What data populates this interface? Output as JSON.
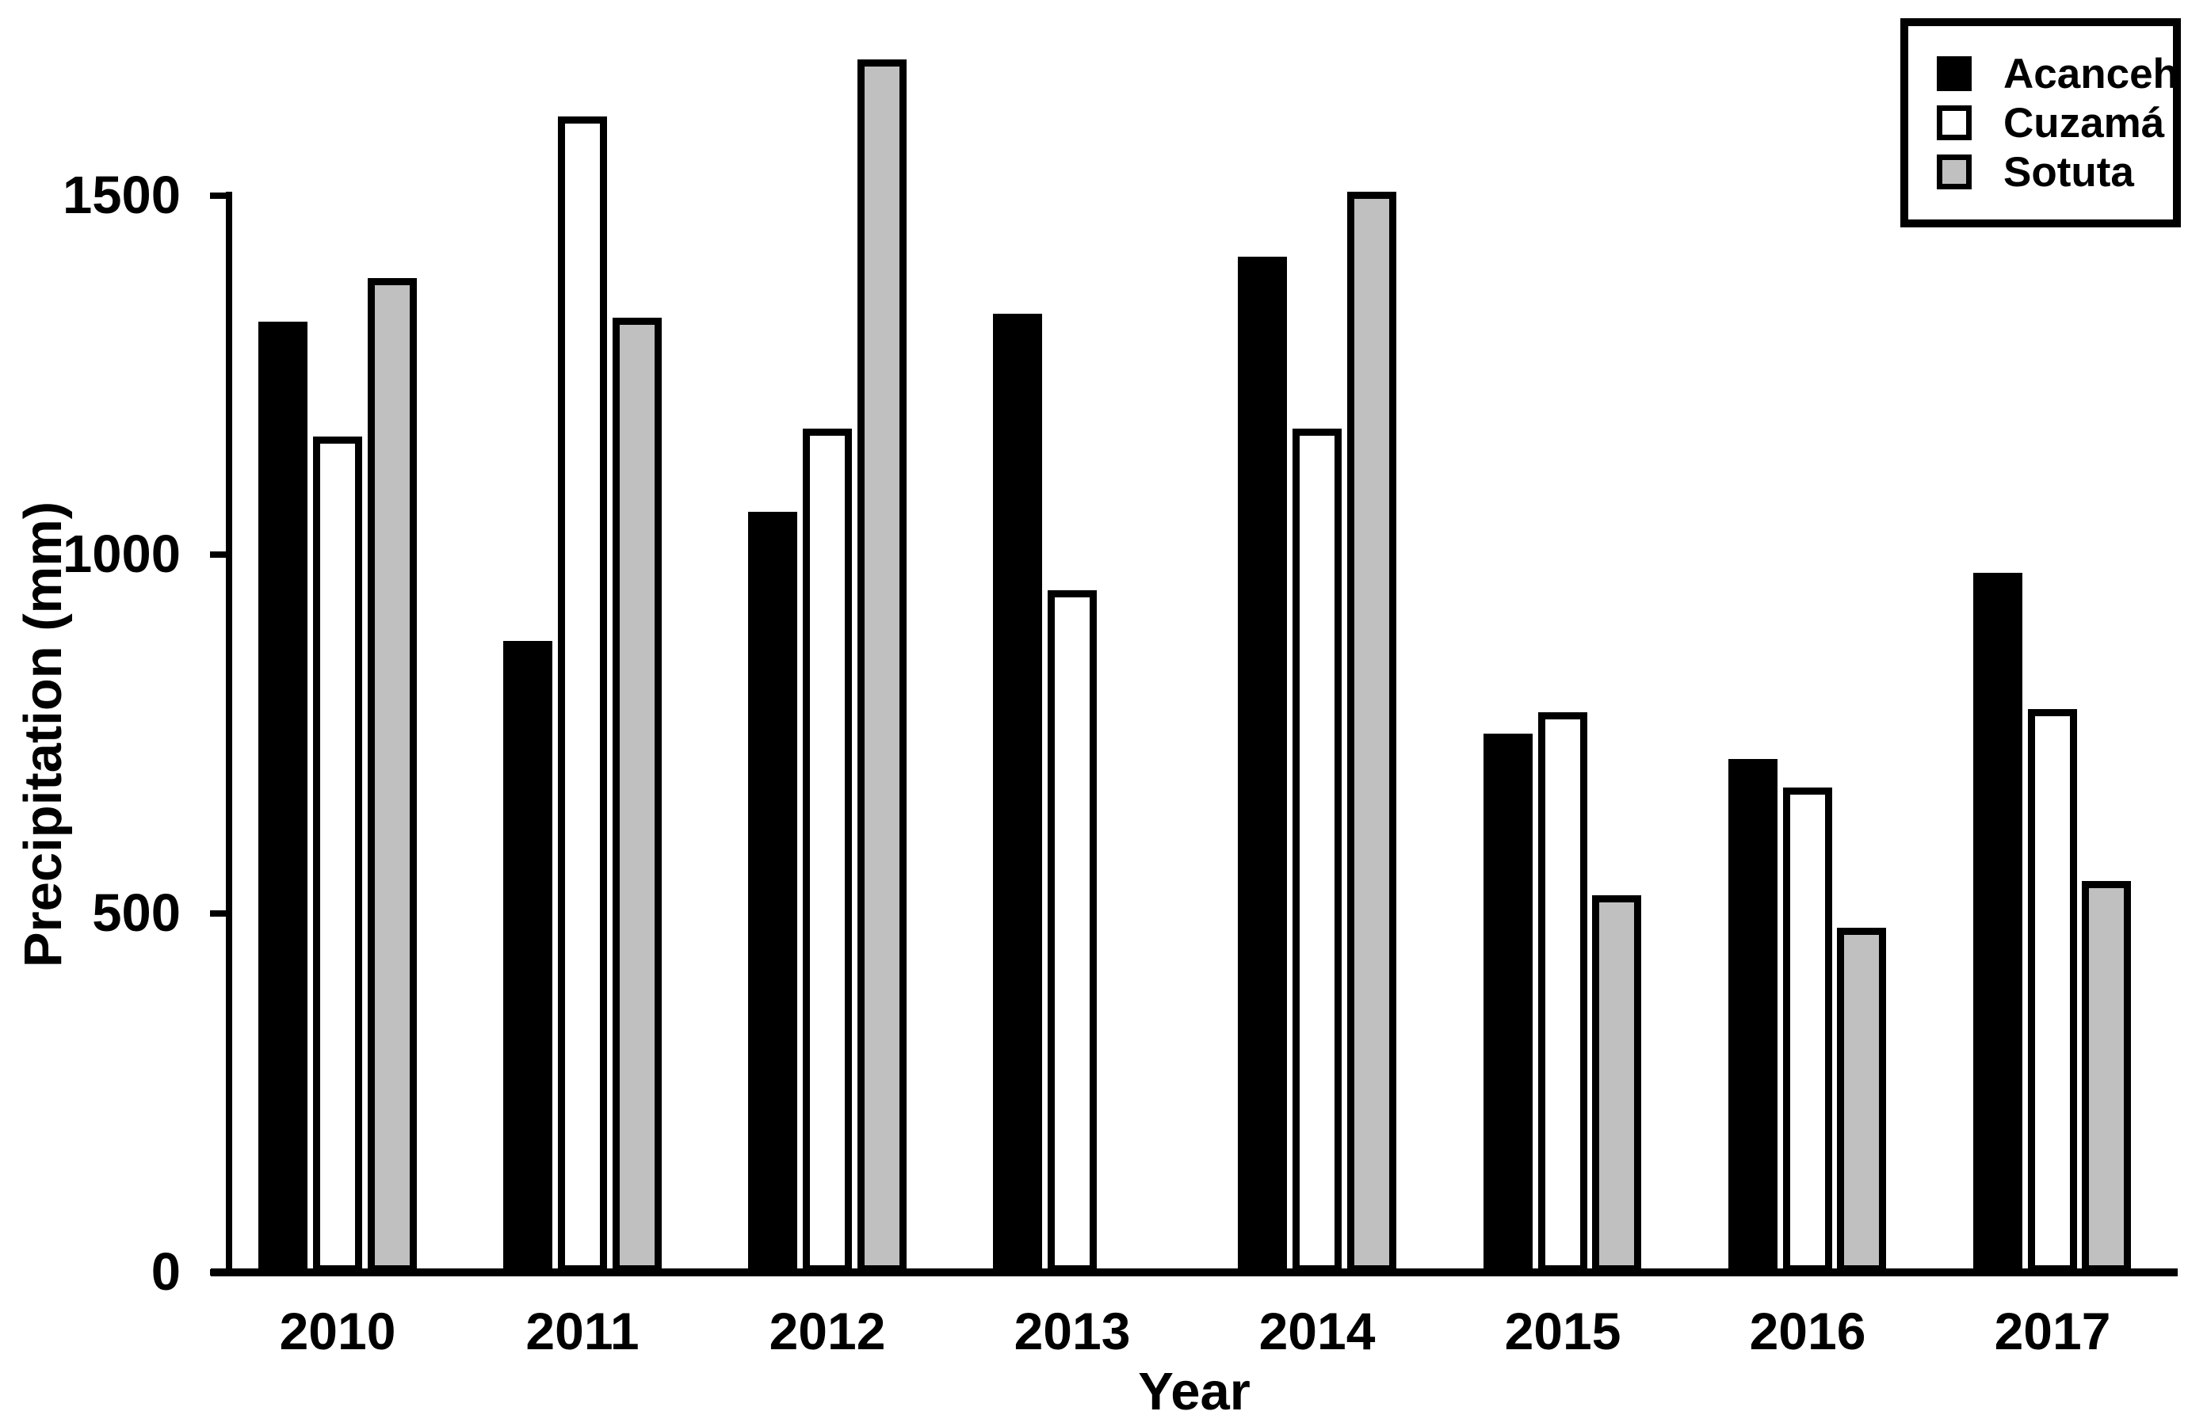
{
  "figure": {
    "background": "#ffffff",
    "text_color": "#000000"
  },
  "chart_data": {
    "type": "bar",
    "title": "",
    "xlabel": "Year",
    "ylabel": "Precipitation (mm)",
    "categories": [
      "2010",
      "2011",
      "2012",
      "2013",
      "2014",
      "2015",
      "2016",
      "2017"
    ],
    "series": [
      {
        "name": "Acanceh",
        "fill": "#000000",
        "values": [
          1325,
          880,
          1060,
          1335,
          1415,
          750,
          715,
          975
        ]
      },
      {
        "name": "Cuzamá",
        "fill": "#ffffff",
        "values": [
          1165,
          1610,
          1175,
          950,
          1175,
          780,
          675,
          785
        ]
      },
      {
        "name": "Sotuta",
        "fill": "#c0c0c0",
        "values": [
          1385,
          1330,
          1690,
          null,
          1505,
          525,
          480,
          545
        ]
      }
    ],
    "ylim": [
      0,
      1500
    ],
    "yticks": [
      0,
      500,
      1000,
      1500
    ],
    "grid": false,
    "legend_position": "top-right",
    "bar_outline_color": "#000000",
    "notes": "Sotuta has no bar in 2013"
  }
}
